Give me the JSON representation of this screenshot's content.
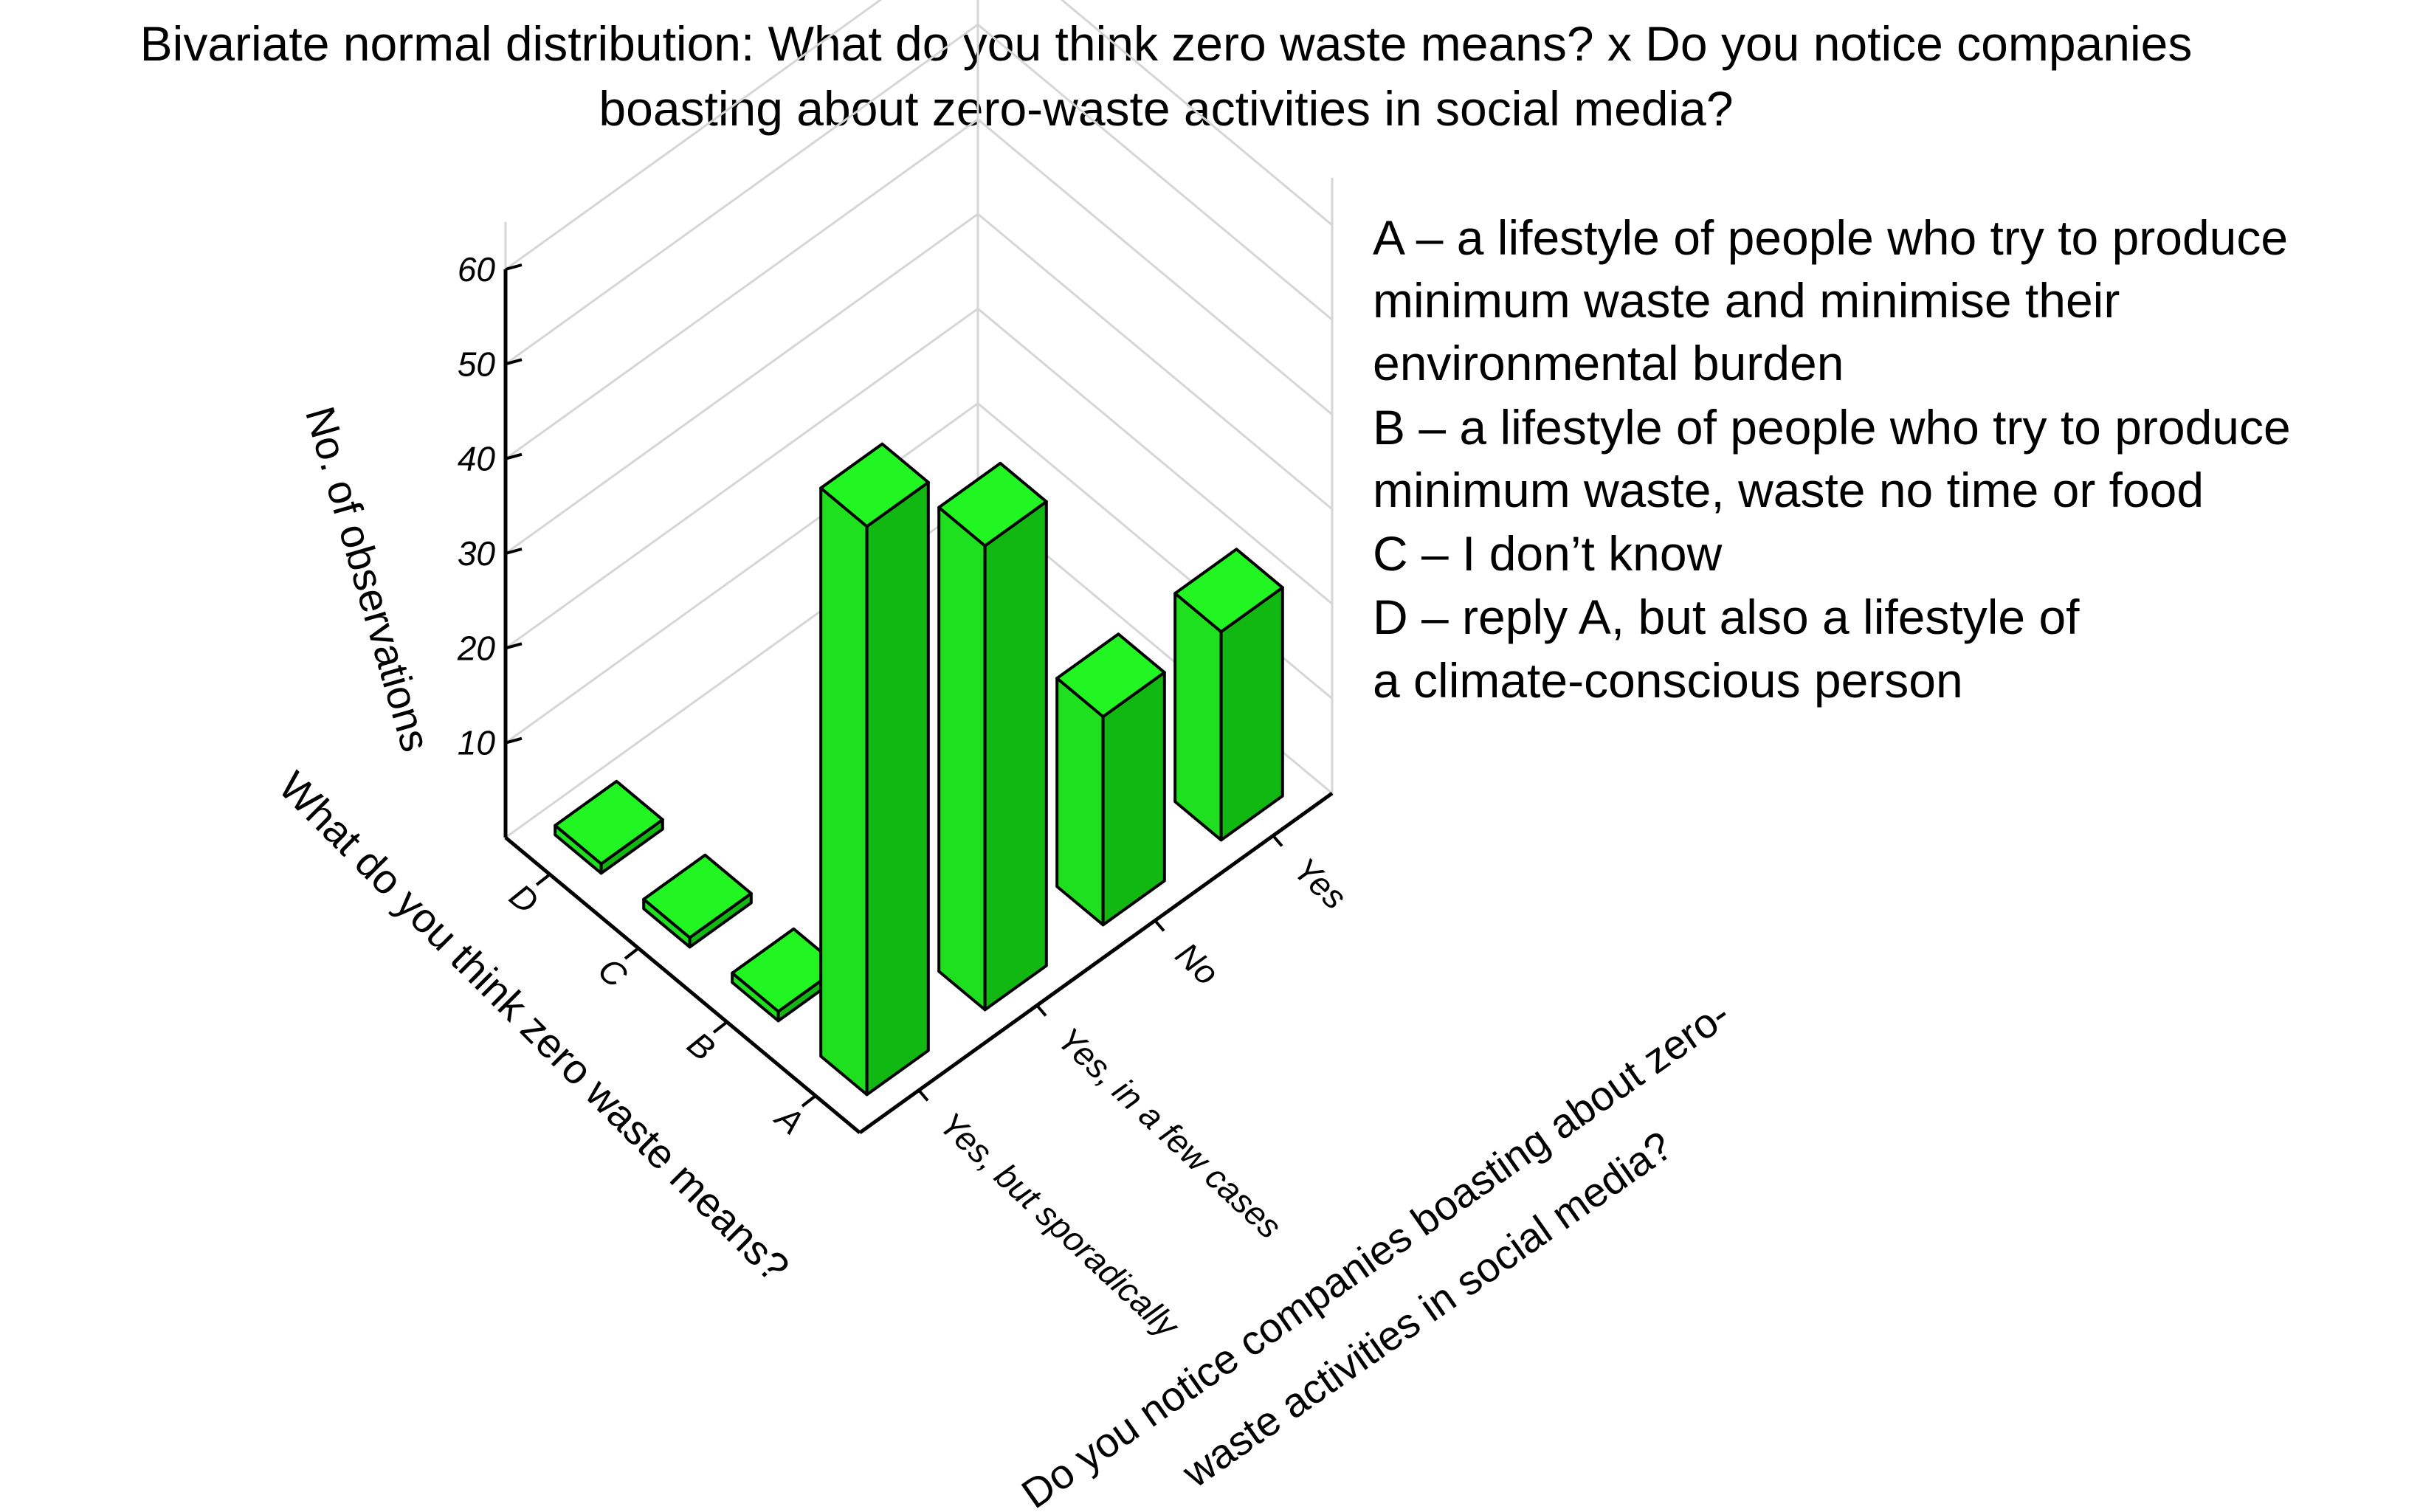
{
  "chart_data": {
    "type": "bar3d",
    "title": "Bivariate normal distribution: What do you think zero waste means? x Do you notice companies boasting about zero-waste activities in social media?",
    "title_lines": [
      "Bivariate normal distribution: What do you think zero waste means? x Do you notice companies",
      "boasting about zero-waste activities in social media?"
    ],
    "zlabel": "No. of observations",
    "zticks": [
      10,
      20,
      30,
      40,
      50,
      60
    ],
    "zlim": [
      0,
      60
    ],
    "xlabel": "What do you think zero waste means?",
    "x_categories": [
      "A",
      "B",
      "C",
      "D"
    ],
    "ylabel_lines": [
      "Do you notice companies boasting about zero-",
      "waste activities in social media?"
    ],
    "y_categories": [
      "Yes, but sporadically",
      "Yes, in a few cases",
      "No",
      "Yes"
    ],
    "bars": [
      {
        "x": "A",
        "y": "Yes, but sporadically",
        "value": 60
      },
      {
        "x": "A",
        "y": "Yes, in a few cases",
        "value": 49
      },
      {
        "x": "A",
        "y": "No",
        "value": 22
      },
      {
        "x": "A",
        "y": "Yes",
        "value": 22
      },
      {
        "x": "B",
        "y": "Yes, but sporadically",
        "value": 1
      },
      {
        "x": "C",
        "y": "Yes, but sporadically",
        "value": 1
      },
      {
        "x": "D",
        "y": "Yes, but sporadically",
        "value": 1
      }
    ],
    "bar_color": "#1fe01f",
    "legend_lines": [
      "A – a lifestyle of people who try to produce",
      "minimum waste and minimise their",
      "environmental burden",
      "B – a lifestyle of people who try to produce",
      "minimum waste, waste no time or food",
      "C – I don’t know",
      "D – reply A, but also a lifestyle of",
      "a climate-conscious person"
    ]
  }
}
